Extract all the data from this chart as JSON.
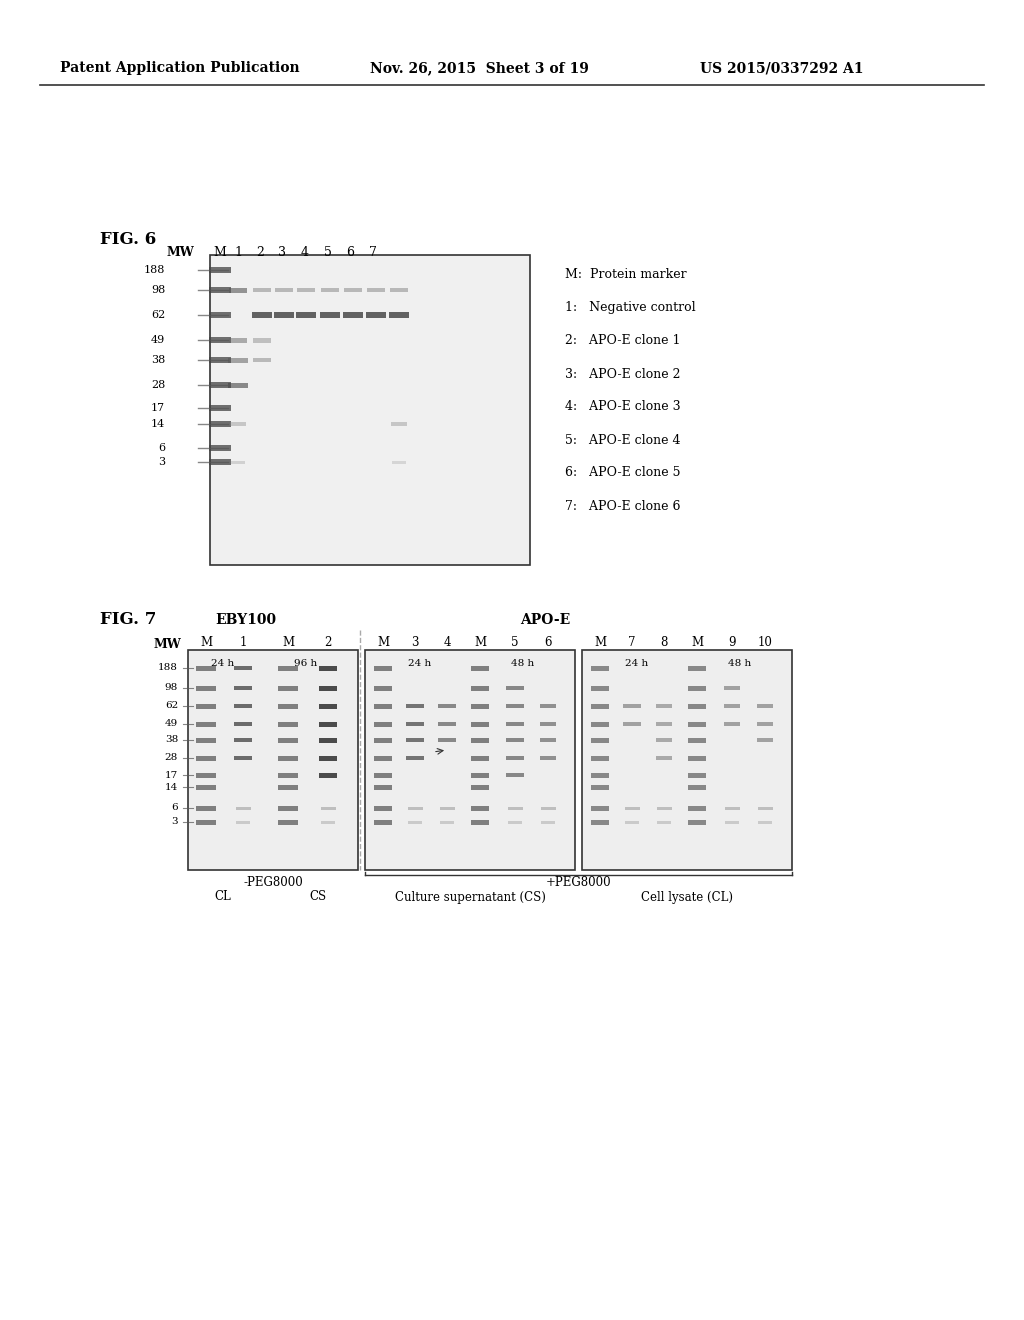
{
  "header_left": "Patent Application Publication",
  "header_mid": "Nov. 26, 2015  Sheet 3 of 19",
  "header_right": "US 2015/0337292 A1",
  "fig6_label": "FIG. 6",
  "fig6_mw_label": "MW",
  "fig6_col_labels": [
    "M",
    "1",
    "2",
    "3",
    "4",
    "5",
    "6",
    "7"
  ],
  "fig6_mw_values": [
    "188",
    "98",
    "62",
    "49",
    "38",
    "28",
    "17",
    "14",
    "6",
    "3"
  ],
  "fig6_legend": [
    "M:  Protein marker",
    "1:   Negative control",
    "2:   APO-E clone 1",
    "3:   APO-E clone 2",
    "4:   APO-E clone 3",
    "5:   APO-E clone 4",
    "6:   APO-E clone 5",
    "7:   APO-E clone 6"
  ],
  "fig7_label": "FIG. 7",
  "fig7_eby_label": "EBY100",
  "fig7_apoe_label": "APO-E",
  "fig7_mw_label": "MW",
  "fig7_col_labels_top": [
    "M",
    "1",
    "M",
    "2",
    "M",
    "3",
    "4",
    "M",
    "5",
    "6",
    "M",
    "7",
    "8",
    "M",
    "9",
    "10"
  ],
  "fig7_mw_values": [
    "188",
    "98",
    "62",
    "49",
    "38",
    "28",
    "17",
    "14",
    "6",
    "3"
  ],
  "fig7_neg_peg_label": "-PEG8000",
  "fig7_pos_peg_label": "+PEG8000",
  "fig7_cl_label": "CL",
  "fig7_cs_label": "CS",
  "fig7_cs_full": "Culture supernatant (CS)",
  "fig7_cl_full": "Cell lysate (CL)",
  "fig7_24h_labels": [
    "24 h",
    "24 h",
    "24 h"
  ],
  "fig7_48h_labels": [
    "96 h",
    "48 h",
    "48 h"
  ],
  "bg_color": "#ffffff",
  "text_color": "#000000",
  "gel_bg": "#e8e8e8",
  "gel_dark": "#555555",
  "gel_mid": "#888888",
  "border_color": "#333333"
}
